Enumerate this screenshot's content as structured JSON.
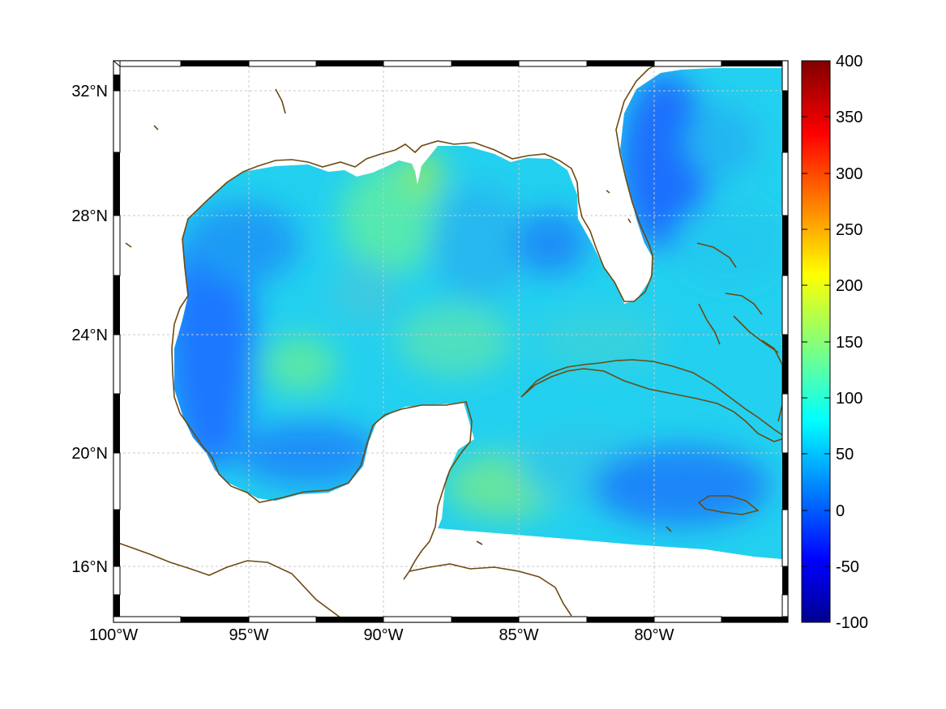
{
  "map": {
    "lon_ticks": [
      "100°W",
      "95°W",
      "90°W",
      "85°W",
      "80°W"
    ],
    "lat_ticks": [
      "32°N",
      "28°N",
      "24°N",
      "20°N",
      "16°N"
    ],
    "colorbar": {
      "min": -100,
      "max": 400,
      "tick_labels": [
        "400",
        "350",
        "300",
        "250",
        "200",
        "150",
        "100",
        "50",
        "0",
        "-50",
        "-100"
      ],
      "colormap": "jet"
    },
    "colors": {
      "land": "#ffffff",
      "coastline": "#6b4a12",
      "frame": "#000000",
      "grid": "#c8c8c8"
    },
    "extent": {
      "lon_min": -100,
      "lon_max": -75,
      "lat_min": 14.3,
      "lat_max": 33
    }
  }
}
